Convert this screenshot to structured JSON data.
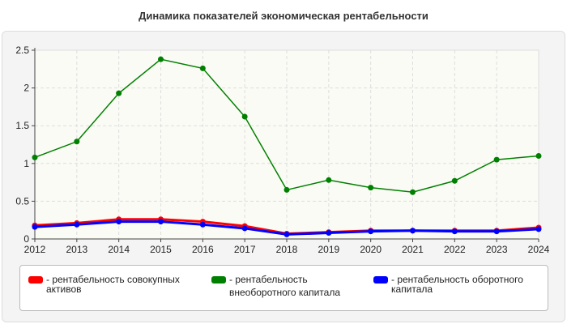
{
  "chart_data": {
    "type": "line",
    "title": "Динамика показателей экономическая рентабельности",
    "categories": [
      "2012",
      "2013",
      "2014",
      "2015",
      "2016",
      "2017",
      "2018",
      "2019",
      "2020",
      "2021",
      "2022",
      "2023",
      "2024"
    ],
    "ylim": [
      0,
      2.5
    ],
    "yticks": [
      "0",
      "0.5",
      "1",
      "1.5",
      "2",
      "2.5"
    ],
    "grid": true,
    "legend_position": "bottom",
    "series": [
      {
        "name": "- рентабельность совокупных активов",
        "color": "#ff0000",
        "values": [
          0.18,
          0.21,
          0.26,
          0.26,
          0.23,
          0.17,
          0.07,
          0.09,
          0.11,
          0.11,
          0.11,
          0.11,
          0.15
        ]
      },
      {
        "name": "- рентабельность внеоборотного капитала",
        "color": "#008000",
        "values": [
          1.08,
          1.29,
          1.93,
          2.38,
          2.26,
          1.62,
          0.65,
          0.78,
          0.68,
          0.62,
          0.77,
          1.05,
          1.1
        ]
      },
      {
        "name": "- рентабельность оборотного капитала",
        "color": "#0000ff",
        "values": [
          0.16,
          0.19,
          0.23,
          0.23,
          0.19,
          0.14,
          0.06,
          0.08,
          0.1,
          0.11,
          0.1,
          0.1,
          0.13
        ]
      }
    ]
  }
}
